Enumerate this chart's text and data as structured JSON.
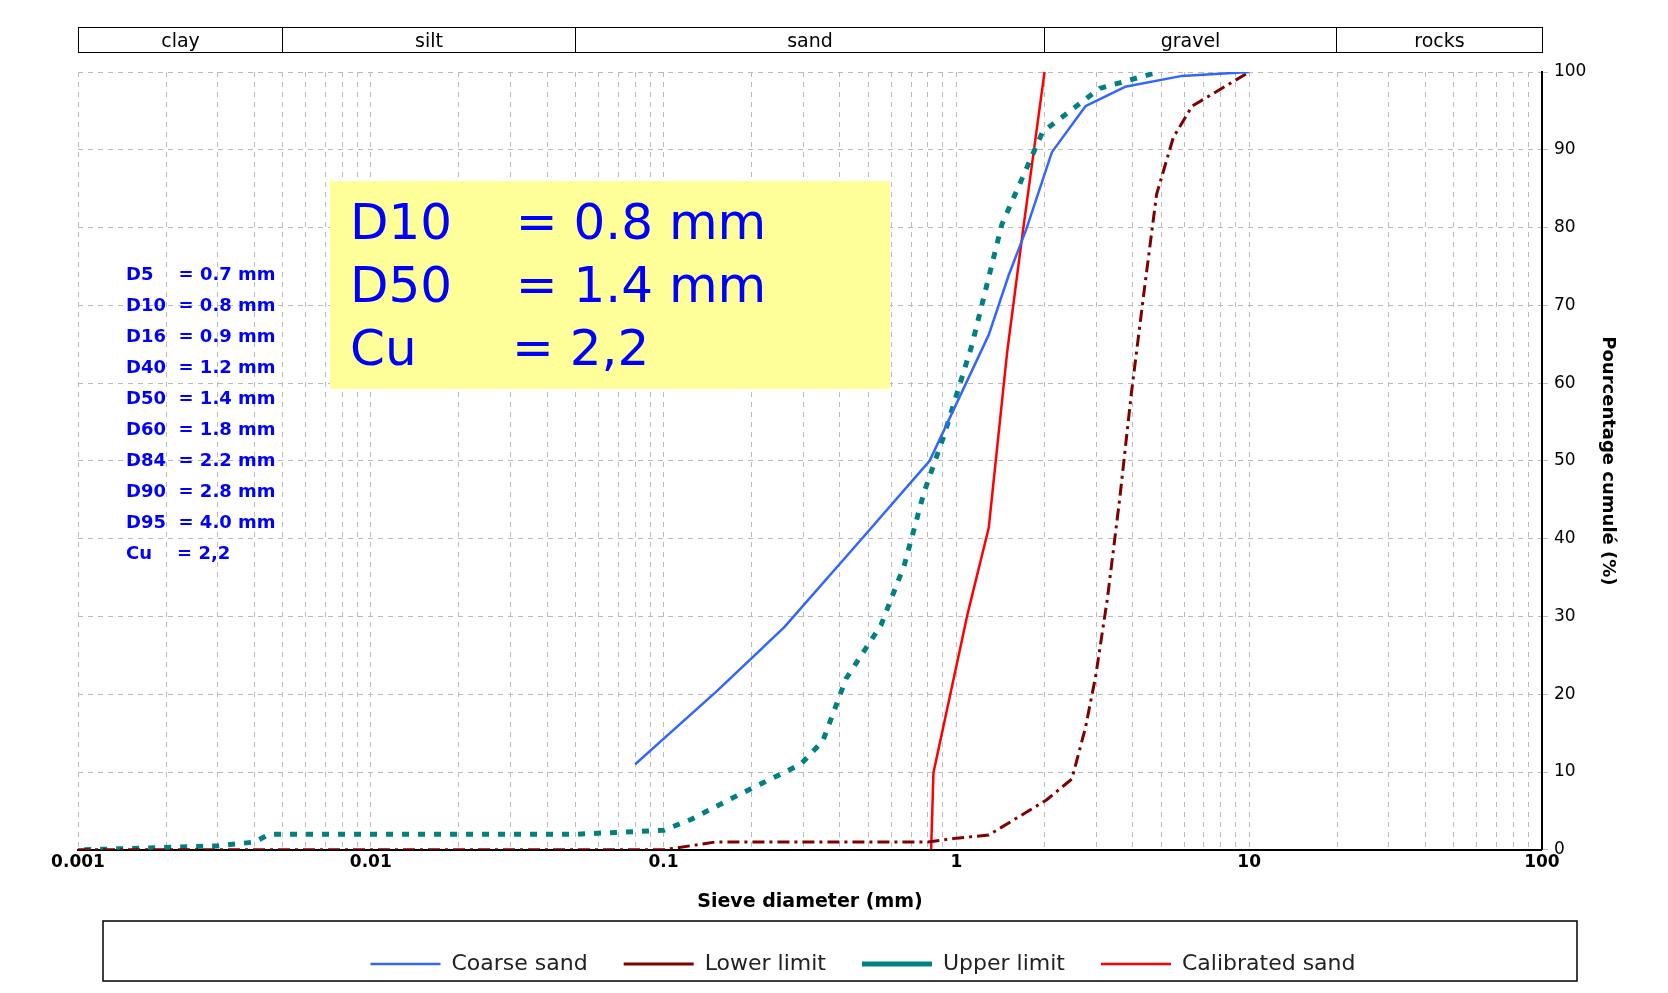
{
  "chart_data": {
    "type": "line",
    "xlabel": "Sieve diameter (mm)",
    "ylabel": "Pourcentage cumulé (%)",
    "log": "x",
    "xlim": [
      0.001,
      100
    ],
    "xticks": [
      0.001,
      {
        "value": 0.002,
        "label": null
      },
      {
        "value": 0.003,
        "label": null
      },
      {
        "value": 0.004,
        "label": null
      },
      {
        "value": 0.005,
        "label": null
      },
      {
        "value": 0.006,
        "label": null
      },
      {
        "value": 0.007,
        "label": null
      },
      {
        "value": 0.008,
        "label": null
      },
      {
        "value": 0.009,
        "label": null
      },
      0.01,
      {
        "value": 0.02,
        "label": null
      },
      {
        "value": 0.03,
        "label": null
      },
      {
        "value": 0.04,
        "label": null
      },
      {
        "value": 0.05,
        "label": null
      },
      {
        "value": 0.06,
        "label": null
      },
      {
        "value": 0.07,
        "label": null
      },
      {
        "value": 0.08,
        "label": null
      },
      {
        "value": 0.09,
        "label": null
      },
      0.1,
      {
        "value": 0.2,
        "label": null
      },
      {
        "value": 0.3,
        "label": null
      },
      {
        "value": 0.4,
        "label": null
      },
      {
        "value": 0.5,
        "label": null
      },
      {
        "value": 0.6,
        "label": null
      },
      {
        "value": 0.7,
        "label": null
      },
      {
        "value": 0.8,
        "label": null
      },
      {
        "value": 0.9,
        "label": null
      },
      1,
      {
        "value": 2,
        "label": null
      },
      {
        "value": 3,
        "label": null
      },
      {
        "value": 4,
        "label": null
      },
      {
        "value": 5,
        "label": null
      },
      {
        "value": 6,
        "label": null
      },
      {
        "value": 7,
        "label": null
      },
      {
        "value": 8,
        "label": null
      },
      {
        "value": 9,
        "label": null
      },
      10,
      {
        "value": 20,
        "label": null
      },
      {
        "value": 30,
        "label": null
      },
      {
        "value": 40,
        "label": null
      },
      {
        "value": 50,
        "label": null
      },
      {
        "value": 60,
        "label": null
      },
      {
        "value": 70,
        "label": null
      },
      {
        "value": 80,
        "label": null
      },
      {
        "value": 90,
        "label": null
      },
      100
    ],
    "ylim": [
      0,
      100
    ],
    "yticks": [
      0,
      10,
      20,
      30,
      40,
      50,
      60,
      70,
      80,
      90,
      100
    ],
    "grid": true,
    "legend": "bottom",
    "marker": "none",
    "series": [
      {
        "name": "Coarse sand",
        "color": "#3366ff",
        "line_style": "solid",
        "x": [
          0.08,
          0.152,
          0.258,
          0.473,
          0.81,
          1.29,
          1.51,
          1.73,
          2.12,
          2.76,
          3.77,
          5.9,
          10
        ],
        "values": [
          11,
          20.4,
          28.6,
          39.9,
          50,
          66.2,
          73.9,
          79.7,
          89.7,
          95.6,
          98.1,
          99.5,
          100
        ]
      },
      {
        "name": "Lower limit",
        "color": "#800000",
        "line_style": "dashed",
        "x": [
          0.001,
          0.1,
          0.15,
          0.8,
          1.0,
          1.29,
          2.03,
          2.48,
          2.76,
          2.99,
          3.28,
          3.62,
          3.96,
          4.38,
          4.83,
          5.51,
          6.38,
          10
        ],
        "values": [
          0,
          0,
          1,
          1,
          1.5,
          1.9,
          6.4,
          9.1,
          15.7,
          22.3,
          32.3,
          45.4,
          58.7,
          71.9,
          84.3,
          91.6,
          95.6,
          100
        ]
      },
      {
        "name": "Upper limit",
        "color": "#008080",
        "line_style": "dotted",
        "x": [
          0.00105,
          0.003,
          0.004,
          0.0045,
          0.01,
          0.05,
          0.1,
          0.124,
          0.179,
          0.294,
          0.35,
          0.42,
          0.553,
          0.664,
          0.776,
          0.908,
          1.13,
          1.43,
          1.97,
          3.09,
          4.9
        ],
        "values": [
          0,
          0.5,
          1,
          2,
          2,
          2,
          2.5,
          3.9,
          7,
          11,
          14,
          22,
          28.9,
          36.6,
          46,
          53.3,
          64.9,
          80.4,
          92.3,
          97.9,
          100
        ]
      },
      {
        "name": "Calibrated sand",
        "color": "#ff0000",
        "line_style": "solid",
        "x": [
          0.82,
          0.835,
          1.09,
          1.29,
          1.49,
          1.68,
          2.0
        ],
        "values": [
          0,
          9.9,
          30.2,
          41.4,
          63.9,
          79,
          100
        ]
      }
    ],
    "annotations": [
      "D5    = 0.7 mm\nD10  = 0.8 mm\nD16  = 0.9 mm\nD40  = 1.2 mm\nD50  = 1.4 mm\nD60  = 1.8 mm\nD84  = 2.2 mm\nD90  = 2.8 mm\nD95  = 4.0 mm\nCu    = 2,2",
      "D10    = 0.8 mm\nD50    = 1.4 mm\nCu      = 2,2",
      "clay",
      "silt",
      "sand",
      "gravel",
      "rocks"
    ]
  }
}
